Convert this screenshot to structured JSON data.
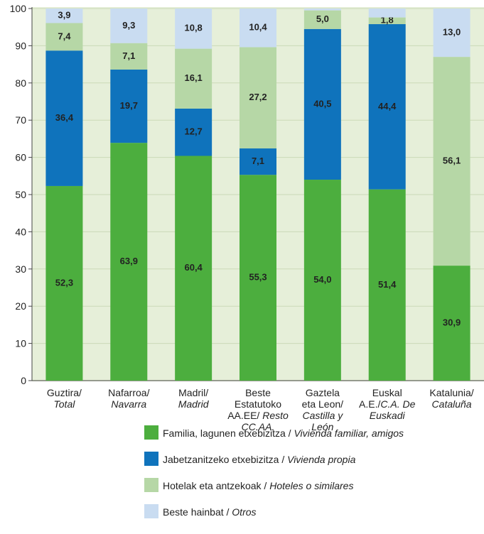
{
  "chart_data": {
    "type": "stacked_bar",
    "categories": [
      [
        {
          "roman": "Guztira/"
        },
        {
          "italic": "Total"
        }
      ],
      [
        {
          "roman": "Nafarroa/"
        },
        {
          "italic": "Navarra"
        }
      ],
      [
        {
          "roman": "Madril/"
        },
        {
          "italic": "Madrid"
        }
      ],
      [
        {
          "roman": "Beste"
        },
        {
          "roman": "Estatutoko"
        },
        {
          "roman": "AA.EE/ ",
          "italic": "Resto"
        },
        {
          "italic": "CC.AA."
        }
      ],
      [
        {
          "roman": "Gaztela"
        },
        {
          "roman": "eta Leon/"
        },
        {
          "italic": "Castilla y"
        },
        {
          "italic": "León"
        }
      ],
      [
        {
          "roman": "Euskal"
        },
        {
          "roman": "A.E./",
          "italic": "C.A. De"
        },
        {
          "italic": "Euskadi"
        }
      ],
      [
        {
          "roman": "Katalunia/"
        },
        {
          "italic": "Cataluña"
        }
      ]
    ],
    "series": [
      {
        "name": {
          "roman": "Familia, lagunen etxebizitza / ",
          "italic": "Vivienda familiar, amigos"
        },
        "color": "#4cae3e",
        "values": [
          52.3,
          63.9,
          60.4,
          55.3,
          54.0,
          51.4,
          30.9
        ],
        "value_labels": [
          "52,3",
          "63,9",
          "60,4",
          "55,3",
          "54,0",
          "51,4",
          "30,9"
        ]
      },
      {
        "name": {
          "roman": "Jabetzanitzeko etxebizitza / ",
          "italic": "Vivienda propia"
        },
        "color": "#0f73bc",
        "values": [
          36.4,
          19.7,
          12.7,
          7.1,
          40.5,
          44.4,
          null
        ],
        "value_labels": [
          "36,4",
          "19,7",
          "12,7",
          "7,1",
          "40,5",
          "44,4",
          null
        ]
      },
      {
        "name": {
          "roman": "Hotelak eta antzekoak / ",
          "italic": "Hoteles o similares"
        },
        "color": "#b6d7a6",
        "values": [
          7.4,
          7.1,
          16.1,
          27.2,
          5.0,
          1.8,
          56.1
        ],
        "value_labels": [
          "7,4",
          "7,1",
          "16,1",
          "27,2",
          "5,0",
          "1,8",
          "56,1"
        ]
      },
      {
        "name": {
          "roman": "Beste hainbat / ",
          "italic": "Otros"
        },
        "color": "#c9dcf1",
        "values": [
          3.9,
          9.3,
          10.8,
          10.4,
          0.5,
          2.4,
          13.0
        ],
        "value_labels": [
          "3,9",
          "9,3",
          "10,8",
          "10,4",
          null,
          null,
          "13,0"
        ]
      }
    ],
    "ylim": [
      0,
      100
    ],
    "yticks": [
      0,
      10,
      20,
      30,
      40,
      50,
      60,
      70,
      80,
      90,
      100
    ],
    "grid": true
  }
}
